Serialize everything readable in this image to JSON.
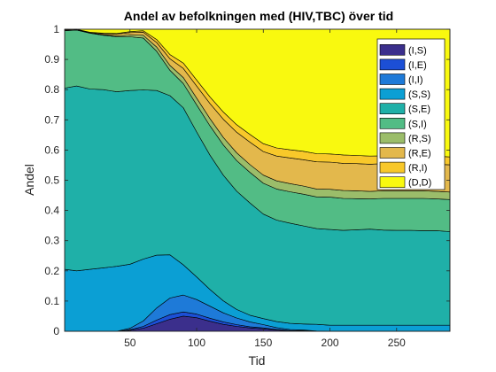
{
  "chart_data": {
    "type": "area",
    "stacked": true,
    "title": "Andel av befolkningen med (HIV,TBC) över tid",
    "xlabel": "Tid",
    "ylabel": "Andel",
    "xlim": [
      1,
      290
    ],
    "ylim": [
      0,
      1
    ],
    "xticks": [
      50,
      100,
      150,
      200,
      250
    ],
    "yticks": [
      0,
      0.1,
      0.2,
      0.3,
      0.4,
      0.5,
      0.6,
      0.7,
      0.8,
      0.9,
      1
    ],
    "ytick_labels": [
      "0",
      "0.1",
      "0.2",
      "0.3",
      "0.4",
      "0.5",
      "0.6",
      "0.7",
      "0.8",
      "0.9",
      "1"
    ],
    "grid": false,
    "legend_position": "top-right",
    "x": [
      1,
      10,
      20,
      30,
      40,
      50,
      60,
      70,
      80,
      90,
      100,
      110,
      120,
      130,
      140,
      150,
      160,
      170,
      180,
      190,
      200,
      210,
      220,
      230,
      240,
      250,
      260,
      270,
      280,
      290
    ],
    "series": [
      {
        "name": "(I,S)",
        "color": "#3b2f8c",
        "values": [
          0,
          0,
          0,
          0,
          0,
          0.003,
          0.01,
          0.025,
          0.04,
          0.05,
          0.045,
          0.033,
          0.023,
          0.016,
          0.011,
          0.008,
          0.004,
          0.002,
          0.001,
          0,
          0,
          0,
          0,
          0,
          0,
          0,
          0,
          0,
          0,
          0
        ]
      },
      {
        "name": "(I,E)",
        "color": "#1c4fd6",
        "values": [
          0,
          0,
          0,
          0,
          0,
          0.002,
          0.006,
          0.012,
          0.015,
          0.014,
          0.012,
          0.01,
          0.008,
          0.006,
          0.004,
          0.003,
          0.002,
          0.001,
          0.001,
          0,
          0,
          0,
          0,
          0,
          0,
          0,
          0,
          0,
          0,
          0
        ]
      },
      {
        "name": "(I,I)",
        "color": "#1e7ad8",
        "values": [
          0,
          0,
          0,
          0,
          0,
          0.005,
          0.018,
          0.04,
          0.055,
          0.056,
          0.048,
          0.04,
          0.03,
          0.022,
          0.016,
          0.011,
          0.006,
          0.003,
          0.002,
          0.001,
          0,
          0,
          0,
          0,
          0,
          0,
          0,
          0,
          0,
          0
        ]
      },
      {
        "name": "(S,S)",
        "color": "#0b9fd4",
        "values": [
          0.205,
          0.2,
          0.205,
          0.21,
          0.215,
          0.212,
          0.205,
          0.175,
          0.143,
          0.1,
          0.075,
          0.055,
          0.04,
          0.028,
          0.022,
          0.02,
          0.02,
          0.02,
          0.02,
          0.022,
          0.02,
          0.02,
          0.02,
          0.02,
          0.02,
          0.02,
          0.02,
          0.02,
          0.02,
          0.02
        ]
      },
      {
        "name": "(S,E)",
        "color": "#1fb0a8",
        "values": [
          0.6,
          0.612,
          0.597,
          0.59,
          0.578,
          0.575,
          0.56,
          0.545,
          0.527,
          0.52,
          0.48,
          0.445,
          0.416,
          0.392,
          0.372,
          0.346,
          0.336,
          0.332,
          0.325,
          0.317,
          0.317,
          0.314,
          0.316,
          0.318,
          0.315,
          0.314,
          0.314,
          0.313,
          0.313,
          0.31
        ]
      },
      {
        "name": "(S,I)",
        "color": "#52bc85",
        "values": [
          0.19,
          0.185,
          0.185,
          0.18,
          0.182,
          0.178,
          0.172,
          0.13,
          0.084,
          0.08,
          0.09,
          0.097,
          0.1,
          0.101,
          0.101,
          0.102,
          0.103,
          0.104,
          0.105,
          0.105,
          0.107,
          0.106,
          0.103,
          0.1,
          0.105,
          0.106,
          0.106,
          0.107,
          0.105,
          0.106
        ]
      },
      {
        "name": "(R,S)",
        "color": "#9bbd6a",
        "values": [
          0.001,
          0.001,
          0.001,
          0.002,
          0.003,
          0.006,
          0.009,
          0.014,
          0.016,
          0.02,
          0.022,
          0.024,
          0.025,
          0.026,
          0.026,
          0.027,
          0.027,
          0.027,
          0.027,
          0.026,
          0.026,
          0.026,
          0.026,
          0.025,
          0.025,
          0.025,
          0.025,
          0.025,
          0.025,
          0.025
        ]
      },
      {
        "name": "(R,E)",
        "color": "#e3b84c",
        "values": [
          0.002,
          0.002,
          0.002,
          0.004,
          0.006,
          0.008,
          0.01,
          0.015,
          0.022,
          0.03,
          0.04,
          0.05,
          0.06,
          0.068,
          0.074,
          0.078,
          0.082,
          0.085,
          0.087,
          0.09,
          0.09,
          0.09,
          0.09,
          0.09,
          0.09,
          0.09,
          0.09,
          0.09,
          0.09,
          0.09
        ]
      },
      {
        "name": "(R,I)",
        "color": "#f8c82a",
        "values": [
          0,
          0,
          0,
          0.001,
          0.002,
          0.003,
          0.005,
          0.01,
          0.014,
          0.018,
          0.02,
          0.022,
          0.024,
          0.025,
          0.026,
          0.026,
          0.027,
          0.027,
          0.028,
          0.027,
          0.027,
          0.028,
          0.027,
          0.027,
          0.026,
          0.026,
          0.026,
          0.026,
          0.027,
          0.026
        ]
      },
      {
        "name": "(D,D)",
        "color": "#f9f90f",
        "values": [
          0.002,
          0,
          0.01,
          0.013,
          0.014,
          0.008,
          0.005,
          0.034,
          0.084,
          0.112,
          0.168,
          0.224,
          0.274,
          0.316,
          0.348,
          0.379,
          0.393,
          0.399,
          0.404,
          0.412,
          0.413,
          0.416,
          0.418,
          0.42,
          0.419,
          0.419,
          0.419,
          0.419,
          0.42,
          0.423
        ]
      }
    ]
  }
}
